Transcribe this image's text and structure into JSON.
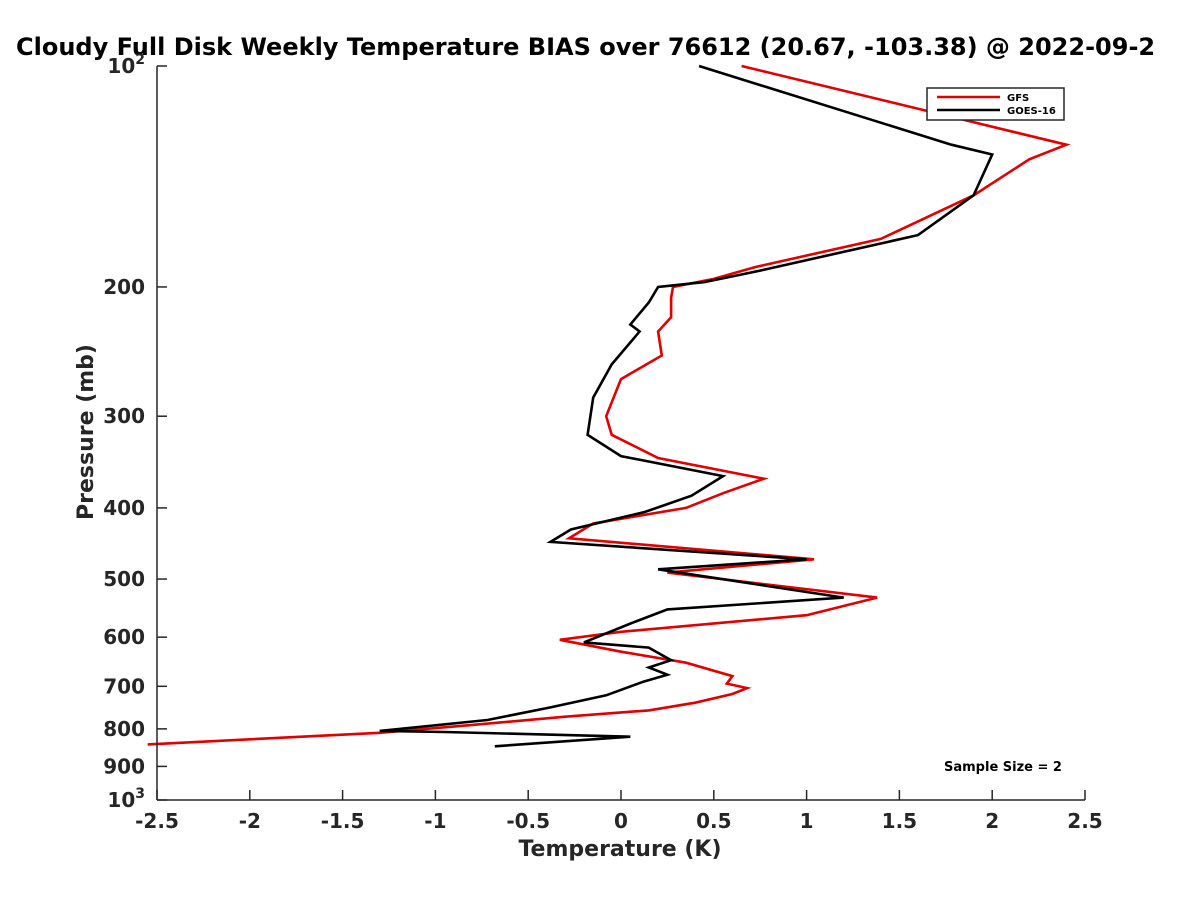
{
  "chart_data": {
    "type": "line",
    "title": "Cloudy Full Disk Weekly Temperature BIAS over 76612 (20.67, -103.38) @ 2022-09-2",
    "xlabel": "Temperature (K)",
    "ylabel": "Pressure (mb)",
    "xlim": [
      -2.5,
      2.5
    ],
    "ylim": [
      100,
      1000
    ],
    "yscale": "log",
    "y_reversed": true,
    "grid": false,
    "legend_position": "top-right",
    "x_ticks": [
      -2.5,
      -2,
      -1.5,
      -1,
      -0.5,
      0,
      0.5,
      1,
      1.5,
      2,
      2.5
    ],
    "x_tick_labels": [
      "-2.5",
      "-2",
      "-1.5",
      "-1",
      "-0.5",
      "0",
      "0.5",
      "1",
      "1.5",
      "2",
      "2.5"
    ],
    "y_ticks": [
      {
        "value": 100,
        "label": "10",
        "sup": "2"
      },
      {
        "value": 200,
        "label": "200",
        "sup": ""
      },
      {
        "value": 300,
        "label": "300",
        "sup": ""
      },
      {
        "value": 400,
        "label": "400",
        "sup": ""
      },
      {
        "value": 500,
        "label": "500",
        "sup": ""
      },
      {
        "value": 600,
        "label": "600",
        "sup": ""
      },
      {
        "value": 700,
        "label": "700",
        "sup": ""
      },
      {
        "value": 800,
        "label": "800",
        "sup": ""
      },
      {
        "value": 900,
        "label": "900",
        "sup": ""
      },
      {
        "value": 1000,
        "label": "10",
        "sup": "3"
      }
    ],
    "series": [
      {
        "name": "GFS",
        "color": "#e00000",
        "x": [
          0.65,
          2.4,
          2.2,
          1.9,
          1.4,
          0.72,
          0.5,
          0.28,
          0.27,
          0.27,
          0.2,
          0.22,
          0.0,
          -0.08,
          -0.05,
          0.2,
          0.77,
          0.55,
          0.35,
          -0.15,
          -0.28,
          1.04,
          0.25,
          1.38,
          1.0,
          0.0,
          -0.33,
          0.0,
          0.35,
          0.6,
          0.57,
          0.68,
          0.6,
          0.4,
          0.15,
          -0.3,
          -0.8,
          -1.3,
          -2.55
        ],
        "y": [
          100,
          128,
          134,
          150,
          172,
          188,
          195,
          200,
          207,
          220,
          230,
          248,
          267,
          300,
          318,
          342,
          365,
          382,
          400,
          420,
          440,
          470,
          490,
          530,
          560,
          590,
          605,
          628,
          650,
          678,
          694,
          704,
          717,
          737,
          755,
          770,
          790,
          810,
          840
        ]
      },
      {
        "name": "GOES-16",
        "color": "#000000",
        "x": [
          0.42,
          1.78,
          2.0,
          1.9,
          1.6,
          0.75,
          0.45,
          0.2,
          0.15,
          0.05,
          0.1,
          -0.05,
          -0.15,
          -0.18,
          0.0,
          0.55,
          0.38,
          0.13,
          -0.27,
          -0.38,
          1.0,
          0.2,
          1.2,
          0.25,
          0.05,
          -0.2,
          0.15,
          0.27,
          0.15,
          0.25,
          0.12,
          -0.08,
          -0.38,
          -0.72,
          -1.3,
          -0.95,
          0.05,
          -0.68
        ],
        "y": [
          100,
          128,
          132,
          150,
          170,
          190,
          197,
          200,
          210,
          225,
          230,
          255,
          283,
          318,
          340,
          362,
          385,
          405,
          428,
          445,
          470,
          485,
          530,
          550,
          575,
          610,
          620,
          645,
          660,
          675,
          690,
          720,
          748,
          778,
          805,
          808,
          820,
          845
        ]
      }
    ],
    "annotations": [
      {
        "text": "Sample Size = 2",
        "position": "bottom-right"
      }
    ]
  }
}
